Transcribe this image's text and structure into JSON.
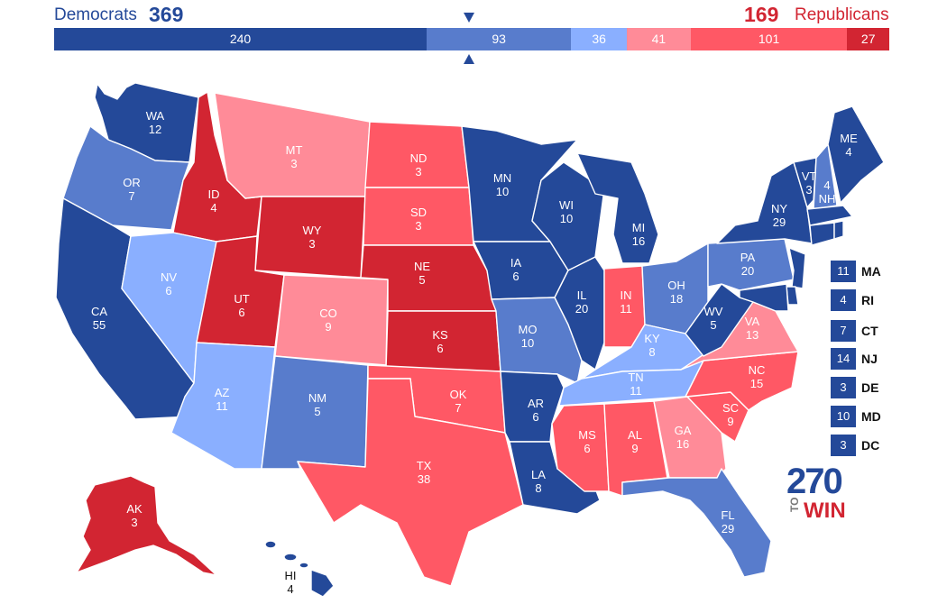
{
  "header": {
    "dem_label": "Democrats",
    "dem_total": "369",
    "rep_total": "169",
    "rep_label": "Republicans"
  },
  "tally_bar": [
    {
      "value": "240",
      "category": "safe-dem",
      "color": "#244999"
    },
    {
      "value": "93",
      "category": "likely-dem",
      "color": "#587ccc"
    },
    {
      "value": "36",
      "category": "lean-dem",
      "color": "#8aafff"
    },
    {
      "value": "41",
      "category": "lean-rep",
      "color": "#ff8b98"
    },
    {
      "value": "101",
      "category": "likely-rep",
      "color": "#ff5865"
    },
    {
      "value": "27",
      "category": "safe-rep",
      "color": "#d22532"
    }
  ],
  "colors": {
    "safe_dem": "#244999",
    "likely_dem": "#587ccc",
    "lean_dem": "#8aafff",
    "lean_rep": "#ff8b98",
    "likely_rep": "#ff5865",
    "safe_rep": "#d22532"
  },
  "states": [
    {
      "abbr": "WA",
      "ev": "12"
    },
    {
      "abbr": "OR",
      "ev": "7"
    },
    {
      "abbr": "CA",
      "ev": "55"
    },
    {
      "abbr": "ID",
      "ev": "4"
    },
    {
      "abbr": "NV",
      "ev": "6"
    },
    {
      "abbr": "MT",
      "ev": "3"
    },
    {
      "abbr": "WY",
      "ev": "3"
    },
    {
      "abbr": "UT",
      "ev": "6"
    },
    {
      "abbr": "AZ",
      "ev": "11"
    },
    {
      "abbr": "CO",
      "ev": "9"
    },
    {
      "abbr": "NM",
      "ev": "5"
    },
    {
      "abbr": "ND",
      "ev": "3"
    },
    {
      "abbr": "SD",
      "ev": "3"
    },
    {
      "abbr": "NE",
      "ev": "5"
    },
    {
      "abbr": "KS",
      "ev": "6"
    },
    {
      "abbr": "OK",
      "ev": "7"
    },
    {
      "abbr": "TX",
      "ev": "38"
    },
    {
      "abbr": "MN",
      "ev": "10"
    },
    {
      "abbr": "IA",
      "ev": "6"
    },
    {
      "abbr": "MO",
      "ev": "10"
    },
    {
      "abbr": "AR",
      "ev": "6"
    },
    {
      "abbr": "LA",
      "ev": "8"
    },
    {
      "abbr": "WI",
      "ev": "10"
    },
    {
      "abbr": "IL",
      "ev": "20"
    },
    {
      "abbr": "MI",
      "ev": "16"
    },
    {
      "abbr": "IN",
      "ev": "11"
    },
    {
      "abbr": "OH",
      "ev": "18"
    },
    {
      "abbr": "KY",
      "ev": "8"
    },
    {
      "abbr": "TN",
      "ev": "11"
    },
    {
      "abbr": "MS",
      "ev": "6"
    },
    {
      "abbr": "AL",
      "ev": "9"
    },
    {
      "abbr": "GA",
      "ev": "16"
    },
    {
      "abbr": "FL",
      "ev": "29"
    },
    {
      "abbr": "SC",
      "ev": "9"
    },
    {
      "abbr": "NC",
      "ev": "15"
    },
    {
      "abbr": "VA",
      "ev": "13"
    },
    {
      "abbr": "WV",
      "ev": "5"
    },
    {
      "abbr": "PA",
      "ev": "20"
    },
    {
      "abbr": "NY",
      "ev": "29"
    },
    {
      "abbr": "VT",
      "ev": "3"
    },
    {
      "abbr": "NH",
      "ev": "4"
    },
    {
      "abbr": "ME",
      "ev": "4"
    },
    {
      "abbr": "AK",
      "ev": "3"
    },
    {
      "abbr": "HI",
      "ev": "4"
    }
  ],
  "small_states": [
    {
      "ev": "11",
      "abbr": "MA"
    },
    {
      "ev": "4",
      "abbr": "RI"
    },
    {
      "ev": "7",
      "abbr": "CT"
    },
    {
      "ev": "14",
      "abbr": "NJ"
    },
    {
      "ev": "3",
      "abbr": "DE"
    },
    {
      "ev": "10",
      "abbr": "MD"
    },
    {
      "ev": "3",
      "abbr": "DC"
    }
  ],
  "logo": {
    "number": "270",
    "to": "TO",
    "win": "WIN"
  }
}
